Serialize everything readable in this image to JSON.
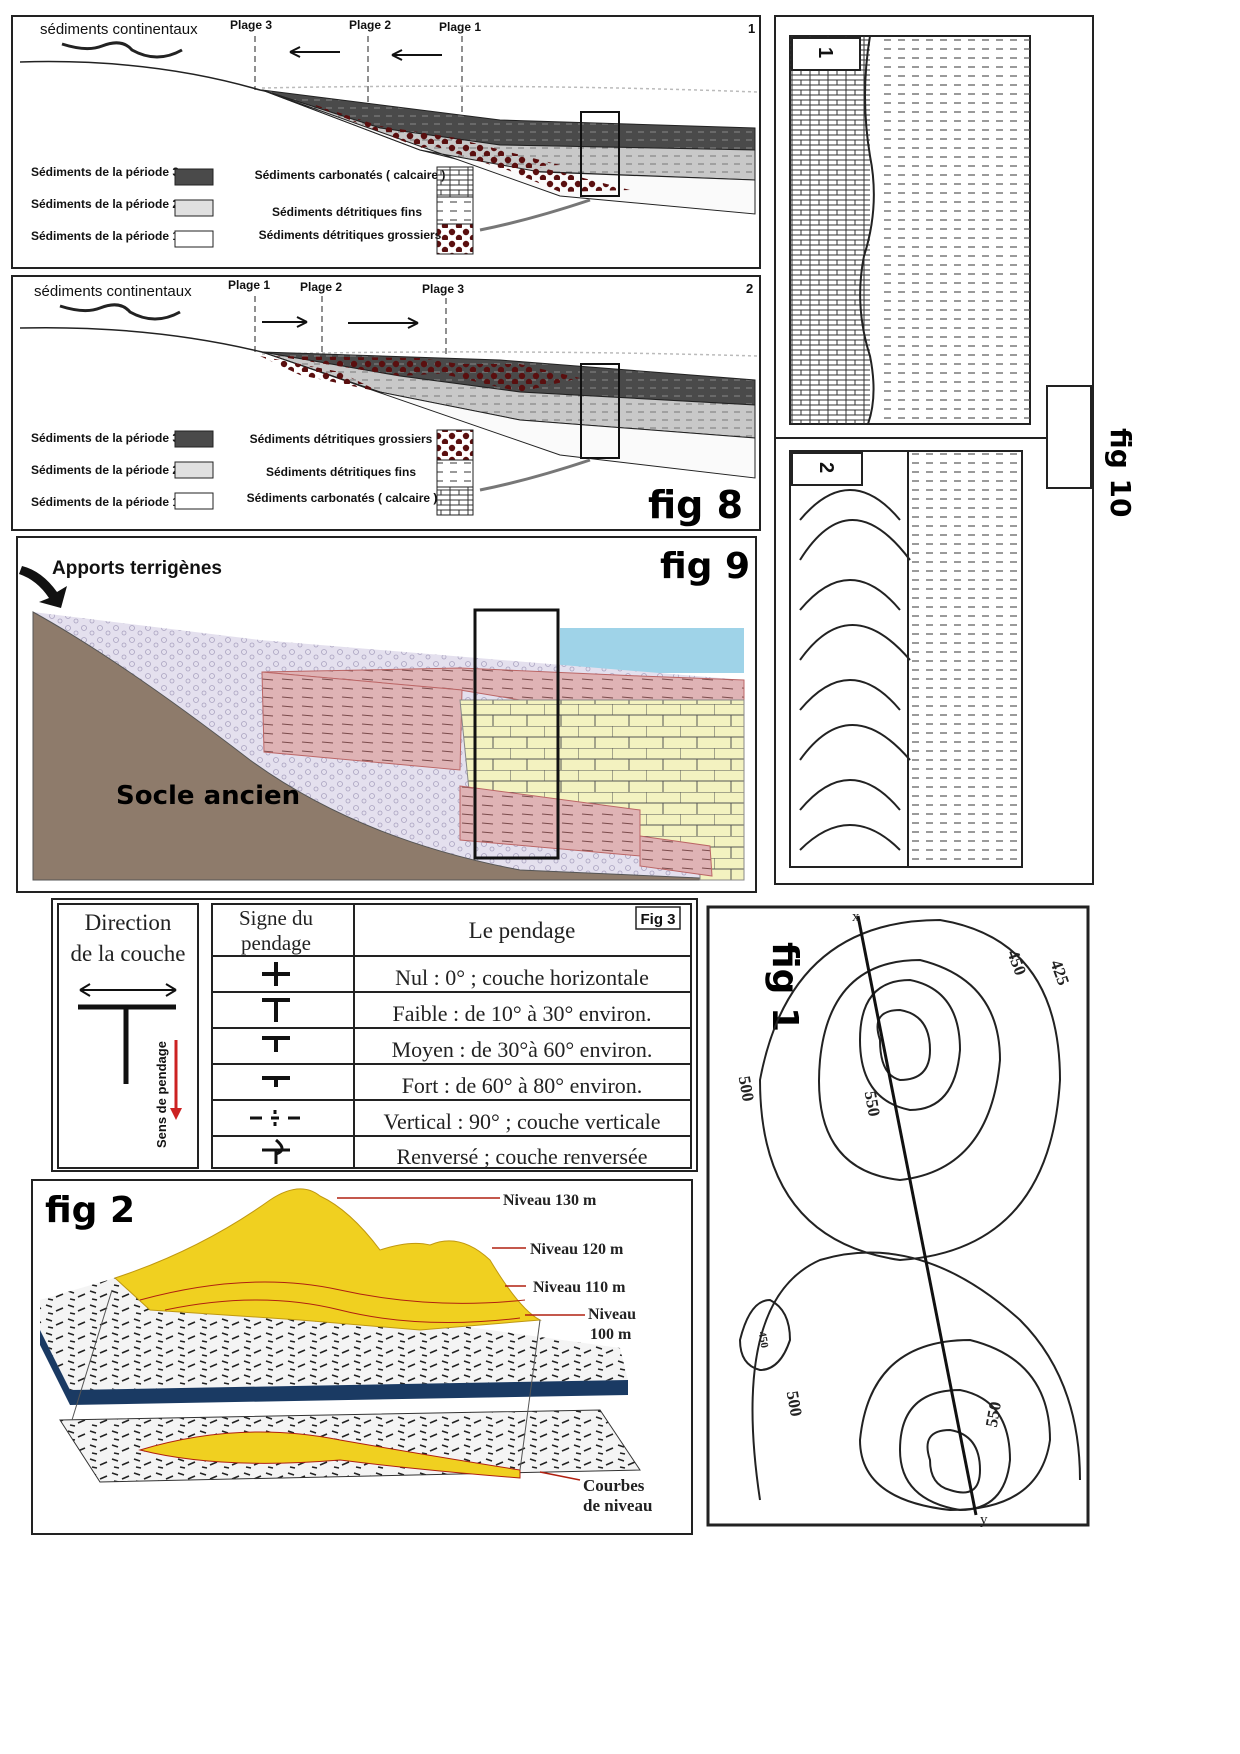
{
  "fig8": {
    "label": "fig 8",
    "panel1": {
      "number": "1",
      "continental": "sédiments continentaux",
      "plages": [
        "Plage 3",
        "Plage 2",
        "Plage 1"
      ],
      "legend_periods": [
        "Sédiments de la période 3",
        "Sédiments de la période 2",
        "Sédiments de la période 1"
      ],
      "legend_types": [
        "Sédiments carbonatés ( calcaire )",
        "Sédiments détritiques fins",
        "Sédiments détritiques grossiers"
      ]
    },
    "panel2": {
      "number": "2",
      "continental": "sédiments continentaux",
      "plages": [
        "Plage 1",
        "Plage 2",
        "Plage 3"
      ],
      "legend_periods": [
        "Sédiments de la période 3",
        "Sédiments de la période 2",
        "Sédiments de la période 1"
      ],
      "legend_types": [
        "Sédiments détritiques grossiers",
        "Sédiments détritiques fins",
        "Sédiments carbonatés ( calcaire )"
      ]
    }
  },
  "fig9": {
    "label": "fig 9",
    "apports": "Apports terrigènes",
    "socle": "Socle ancien"
  },
  "fig10": {
    "label": "fig 10",
    "col1": "1",
    "col2": "2"
  },
  "fig3": {
    "label": "Fig 3",
    "direction_title_1": "Direction",
    "direction_title_2": "de la couche",
    "sens": "Sens de pendage",
    "header_sign_1": "Signe du",
    "header_sign_2": "pendage",
    "header_pendage": "Le pendage",
    "rows": [
      "Nul : 0° ; couche horizontale",
      "Faible : de 10° à 30° environ.",
      "Moyen : de 30°à 60° environ.",
      "Fort : de 60° à 80° environ.",
      "Vertical : 90° ; couche verticale",
      "Renversé ; couche renversée"
    ]
  },
  "fig2": {
    "label": "fig 2",
    "levels": [
      "Niveau 130 m",
      "Niveau 120 m",
      "Niveau 110 m",
      "Niveau",
      "100 m"
    ],
    "courbes_1": "Courbes",
    "courbes_2": "de niveau"
  },
  "fig1": {
    "label": "fig 1",
    "contours": [
      "450",
      "425",
      "500",
      "550",
      "450",
      "500",
      "550"
    ],
    "x_label": "x",
    "y_label": "y"
  }
}
